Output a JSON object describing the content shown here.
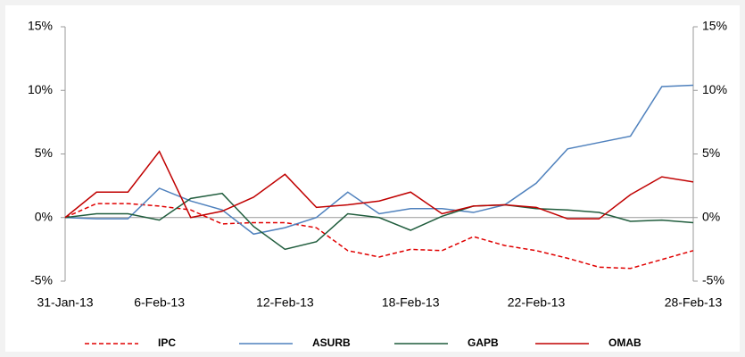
{
  "chart_data": {
    "type": "line",
    "categories": [
      "31-Jan-13",
      null,
      null,
      "6-Feb-13",
      null,
      null,
      null,
      "12-Feb-13",
      null,
      null,
      null,
      "18-Feb-13",
      null,
      null,
      null,
      "22-Feb-13",
      null,
      null,
      null,
      null,
      "28-Feb-13"
    ],
    "series": [
      {
        "name": "IPC",
        "color": "#e00000",
        "dashed": true,
        "values": [
          0,
          1.1,
          1.1,
          0.9,
          0.6,
          -0.5,
          -0.4,
          -0.4,
          -0.8,
          -2.6,
          -3.1,
          -2.5,
          -2.6,
          -1.5,
          -2.2,
          -2.6,
          -3.2,
          -3.9,
          -4.0,
          -3.3,
          -2.6
        ]
      },
      {
        "name": "ASURB",
        "color": "#4f81bd",
        "values": [
          0,
          -0.1,
          -0.1,
          2.3,
          1.3,
          0.6,
          -1.3,
          -0.8,
          0.0,
          2.0,
          0.3,
          0.7,
          0.7,
          0.4,
          1.0,
          2.7,
          5.4,
          5.9,
          6.4,
          10.3,
          10.4
        ]
      },
      {
        "name": "GAPB",
        "color": "#1f5c3c",
        "values": [
          0,
          0.3,
          0.3,
          -0.2,
          1.5,
          1.9,
          -0.7,
          -2.5,
          -1.9,
          0.3,
          0.0,
          -1.0,
          0.1,
          0.9,
          1.0,
          0.7,
          0.6,
          0.4,
          -0.3,
          -0.2,
          -0.4
        ]
      },
      {
        "name": "OMAB",
        "color": "#c00000",
        "values": [
          0,
          2.0,
          2.0,
          5.2,
          0.0,
          0.5,
          1.6,
          3.4,
          0.8,
          1.0,
          1.3,
          2.0,
          0.3,
          0.9,
          1.0,
          0.8,
          -0.1,
          -0.1,
          1.8,
          3.2,
          2.8
        ]
      }
    ],
    "ylim": [
      -5,
      15
    ],
    "yticks": [
      {
        "value": -5,
        "label": "-5%"
      },
      {
        "value": 0,
        "label": "0%"
      },
      {
        "value": 5,
        "label": "5%"
      },
      {
        "value": 10,
        "label": "10%"
      },
      {
        "value": 15,
        "label": "15%"
      }
    ],
    "y2lim": [
      -5,
      15
    ],
    "y2ticks": [
      {
        "value": -5,
        "label": "-5%"
      },
      {
        "value": 0,
        "label": "0%"
      },
      {
        "value": 5,
        "label": "5%"
      },
      {
        "value": 10,
        "label": "10%"
      },
      {
        "value": 15,
        "label": "15%"
      }
    ],
    "legend": "bottom"
  }
}
